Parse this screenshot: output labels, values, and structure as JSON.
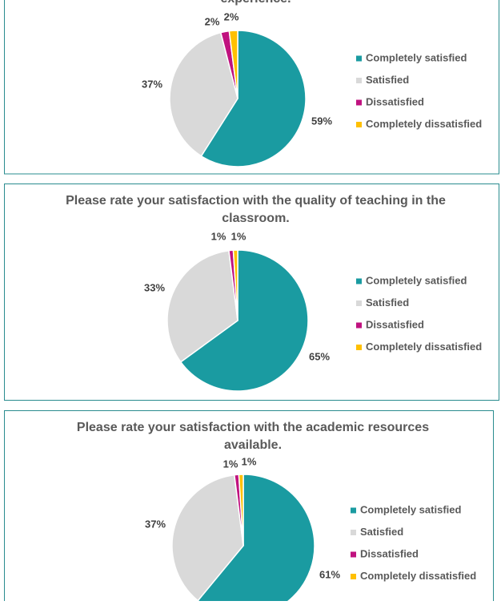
{
  "chart_data": [
    {
      "type": "pie",
      "title": "experience.",
      "categories": [
        "Completely satisfied",
        "Satisfied",
        "Dissatisfied",
        "Completely dissatisfied"
      ],
      "values": [
        59,
        37,
        2,
        2
      ],
      "value_labels": [
        "59%",
        "37%",
        "2%",
        "2%"
      ],
      "colors": [
        "#1a9ba1",
        "#d9d9d9",
        "#c0127f",
        "#ffc000"
      ],
      "legend": "right"
    },
    {
      "type": "pie",
      "title": "Please rate your satisfaction with the quality of teaching in the classroom.",
      "categories": [
        "Completely satisfied",
        "Satisfied",
        "Dissatisfied",
        "Completely dissatisfied"
      ],
      "values": [
        65,
        33,
        1,
        1
      ],
      "value_labels": [
        "65%",
        "33%",
        "1%",
        "1%"
      ],
      "colors": [
        "#1a9ba1",
        "#d9d9d9",
        "#c0127f",
        "#ffc000"
      ],
      "legend": "right"
    },
    {
      "type": "pie",
      "title": "Please rate your satisfaction with the academic resources available.",
      "categories": [
        "Completely satisfied",
        "Satisfied",
        "Dissatisfied",
        "Completely dissatisfied"
      ],
      "values": [
        61,
        37,
        1,
        1
      ],
      "value_labels": [
        "61%",
        "37%",
        "1%",
        "1%"
      ],
      "colors": [
        "#1a9ba1",
        "#d9d9d9",
        "#c0127f",
        "#ffc000"
      ],
      "legend": "right"
    }
  ]
}
